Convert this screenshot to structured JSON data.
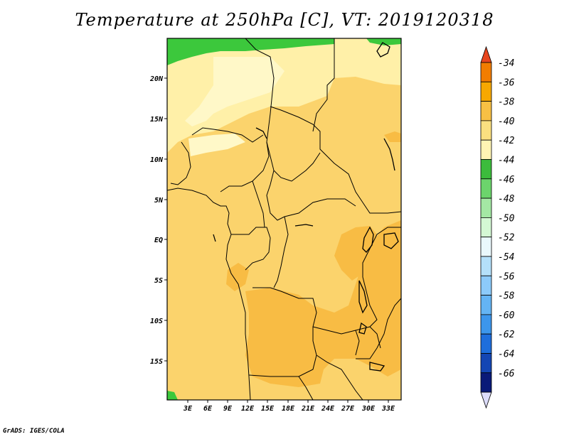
{
  "title": "Temperature at 250hPa [C], VT: 2019120318",
  "credit": "GrADS: IGES/COLA",
  "map": {
    "lon_labels": [
      "3E",
      "6E",
      "9E",
      "12E",
      "15E",
      "18E",
      "21E",
      "24E",
      "27E",
      "30E",
      "33E"
    ],
    "lat_labels": [
      "20N",
      "15N",
      "10N",
      "5N",
      "EQ",
      "5S",
      "10S",
      "15S"
    ]
  },
  "colorbar": {
    "labels": [
      "-34",
      "-36",
      "-38",
      "-40",
      "-42",
      "-44",
      "-46",
      "-48",
      "-50",
      "-52",
      "-54",
      "-56",
      "-58",
      "-60",
      "-62",
      "-64",
      "-66"
    ],
    "colors": [
      "#e8461f",
      "#f27d00",
      "#f7a800",
      "#f8c044",
      "#fbe080",
      "#fff4b4",
      "#3cbc3c",
      "#6cd46c",
      "#a4e8a4",
      "#d4f8d4",
      "#eaf8fc",
      "#b4e0fa",
      "#8ccafa",
      "#64b4f4",
      "#3c96ec",
      "#1e6edc",
      "#1446b4",
      "#0a1a78",
      "#dcdcfa"
    ]
  },
  "colors": {
    "c_-40_-38": "#fbd36c",
    "c_-38_-36": "#f8bc44",
    "c_-42_-40": "#fff0a8",
    "c_-44_-42": "#fff8c8",
    "c_green": "#3cc83c",
    "border": "#000000"
  }
}
